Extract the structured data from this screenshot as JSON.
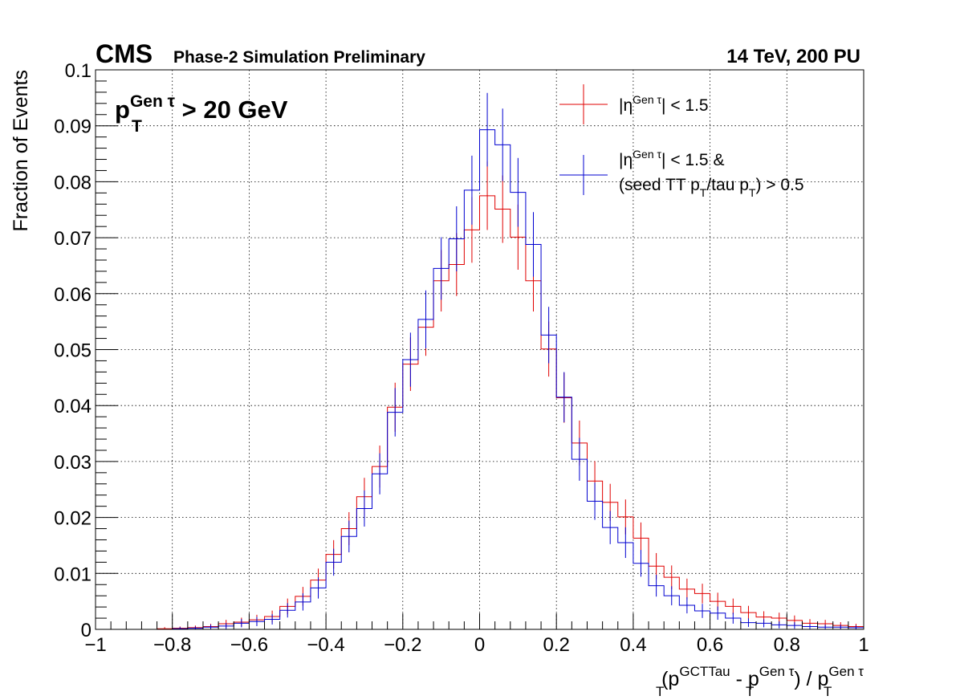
{
  "header": {
    "experiment": "CMS",
    "status": "Phase-2 Simulation Preliminary",
    "conditions": "14 TeV, 200 PU"
  },
  "annotation": {
    "cut_main": "p",
    "cut_sub": "T",
    "cut_sup": "Gen τ",
    "cut_rest": " > 20 GeV"
  },
  "axes": {
    "ylabel": "Fraction of Events",
    "xlabel": {
      "p1": "(p",
      "sub1": "T",
      "sup1": "GCTTau",
      "p2": " - p",
      "sub2": "T",
      "sup2": "Gen τ",
      "p3": ") / p",
      "sub3": "T",
      "sup3": "Gen τ"
    }
  },
  "legend": {
    "entry1": {
      "pre": "|η",
      "sup": "Gen τ",
      "post": "| < 1.5"
    },
    "entry2": {
      "line1_pre": "|η",
      "line1_sup": "Gen τ",
      "line1_post": "| < 1.5 &",
      "line2_a": "(seed TT p",
      "line2_sub1": "T",
      "line2_b": "/tau p",
      "line2_sub2": "T",
      "line2_c": ") > 0.5"
    }
  },
  "colors": {
    "series1": "#e00000",
    "series2": "#0000d0"
  },
  "chart_data": {
    "type": "histogram",
    "xlim": [
      -1,
      1
    ],
    "ylim": [
      0,
      0.1
    ],
    "grid": true,
    "legend_position": "top-right",
    "x_ticks": [
      "−1",
      "−0.8",
      "−0.6",
      "−0.4",
      "−0.2",
      "0",
      "0.2",
      "0.4",
      "0.6",
      "0.8",
      "1"
    ],
    "y_ticks": [
      "0",
      "0.01",
      "0.02",
      "0.03",
      "0.04",
      "0.05",
      "0.06",
      "0.07",
      "0.08",
      "0.09",
      "0.1"
    ],
    "bin_edges_start": -1.0,
    "bin_width": 0.04,
    "series": [
      {
        "color": "red",
        "values": [
          0,
          0,
          0,
          0,
          0.0001,
          0.0002,
          0.0003,
          0.0005,
          0.001,
          0.0013,
          0.0017,
          0.0023,
          0.0041,
          0.0059,
          0.0088,
          0.0134,
          0.018,
          0.0237,
          0.0291,
          0.0397,
          0.0474,
          0.054,
          0.0623,
          0.0652,
          0.0714,
          0.0775,
          0.0751,
          0.0701,
          0.0623,
          0.0501,
          0.0414,
          0.0333,
          0.0265,
          0.0227,
          0.0201,
          0.0163,
          0.0113,
          0.0093,
          0.0072,
          0.0064,
          0.005,
          0.0041,
          0.003,
          0.0022,
          0.002,
          0.0016,
          0.0011,
          0.001,
          0.0007,
          0.0005
        ]
      },
      {
        "color": "blue",
        "values": [
          0,
          0,
          0,
          0,
          0,
          0.0001,
          0.0002,
          0.0004,
          0.0006,
          0.0011,
          0.0014,
          0.0018,
          0.0034,
          0.0049,
          0.0074,
          0.012,
          0.0166,
          0.0216,
          0.0278,
          0.0388,
          0.0482,
          0.0554,
          0.0645,
          0.0698,
          0.0785,
          0.0893,
          0.0866,
          0.0781,
          0.0688,
          0.0526,
          0.0415,
          0.0304,
          0.0229,
          0.0182,
          0.0155,
          0.0118,
          0.0078,
          0.006,
          0.0043,
          0.0033,
          0.0029,
          0.002,
          0.0012,
          0.0011,
          0.0008,
          0.0007,
          0.0005,
          0.0004,
          0.0004,
          0.0003
        ]
      }
    ]
  }
}
